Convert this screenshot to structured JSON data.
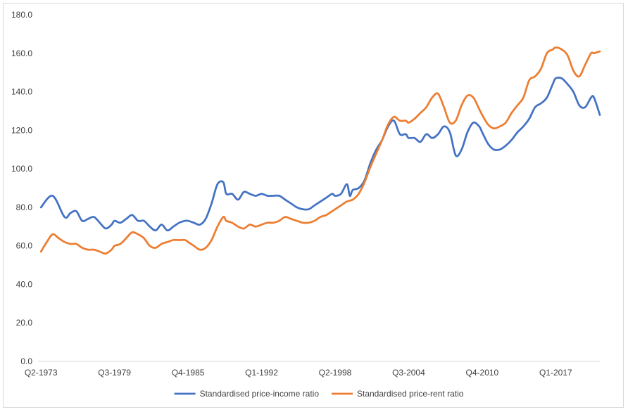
{
  "chart_data": {
    "type": "line",
    "title": "",
    "xlabel": "",
    "ylabel": "",
    "ylim": [
      0,
      180
    ],
    "y_ticks": [
      "0.0",
      "20.0",
      "40.0",
      "60.0",
      "80.0",
      "100.0",
      "120.0",
      "140.0",
      "160.0",
      "180.0"
    ],
    "x_ticks": [
      "Q2-1973",
      "Q3-1979",
      "Q4-1985",
      "Q1-1992",
      "Q2-1998",
      "Q3-2004",
      "Q4-2010",
      "Q1-2017"
    ],
    "grid": false,
    "legend_position": "bottom",
    "series": [
      {
        "name": "Standardised price-income ratio",
        "color": "#4472C4",
        "points": [
          [
            "Q2-1973",
            80
          ],
          [
            "Q2-1974",
            86
          ],
          [
            "Q2-1975",
            75
          ],
          [
            "Q4-1975",
            77
          ],
          [
            "Q2-1976",
            78
          ],
          [
            "Q4-1976",
            73
          ],
          [
            "Q2-1977",
            74
          ],
          [
            "Q4-1977",
            75
          ],
          [
            "Q2-1978",
            72
          ],
          [
            "Q4-1978",
            69
          ],
          [
            "Q2-1979",
            71
          ],
          [
            "Q3-1979",
            73
          ],
          [
            "Q1-1980",
            72
          ],
          [
            "Q3-1980",
            74
          ],
          [
            "Q1-1981",
            76
          ],
          [
            "Q3-1981",
            73
          ],
          [
            "Q1-1982",
            73
          ],
          [
            "Q3-1982",
            70
          ],
          [
            "Q1-1983",
            68
          ],
          [
            "Q3-1983",
            71
          ],
          [
            "Q1-1984",
            68
          ],
          [
            "Q3-1984",
            70
          ],
          [
            "Q1-1985",
            72
          ],
          [
            "Q3-1985",
            73
          ],
          [
            "Q4-1985",
            73
          ],
          [
            "Q2-1986",
            72
          ],
          [
            "Q4-1986",
            71
          ],
          [
            "Q2-1987",
            74
          ],
          [
            "Q4-1987",
            82
          ],
          [
            "Q2-1988",
            92
          ],
          [
            "Q4-1988",
            93
          ],
          [
            "Q1-1989",
            87
          ],
          [
            "Q3-1989",
            87
          ],
          [
            "Q1-1990",
            84
          ],
          [
            "Q3-1990",
            88
          ],
          [
            "Q1-1991",
            87
          ],
          [
            "Q3-1991",
            86
          ],
          [
            "Q1-1992",
            87
          ],
          [
            "Q3-1992",
            86
          ],
          [
            "Q1-1993",
            86
          ],
          [
            "Q3-1993",
            86
          ],
          [
            "Q1-1994",
            84
          ],
          [
            "Q3-1994",
            82
          ],
          [
            "Q1-1995",
            80
          ],
          [
            "Q3-1995",
            79
          ],
          [
            "Q1-1996",
            79
          ],
          [
            "Q3-1996",
            81
          ],
          [
            "Q1-1997",
            83
          ],
          [
            "Q3-1997",
            85
          ],
          [
            "Q1-1998",
            87
          ],
          [
            "Q2-1998",
            86
          ],
          [
            "Q4-1998",
            87
          ],
          [
            "Q2-1999",
            92
          ],
          [
            "Q3-1999",
            86
          ],
          [
            "Q4-1999",
            89
          ],
          [
            "Q2-2000",
            90
          ],
          [
            "Q4-2000",
            94
          ],
          [
            "Q2-2001",
            103
          ],
          [
            "Q4-2001",
            110
          ],
          [
            "Q2-2002",
            115
          ],
          [
            "Q4-2002",
            122
          ],
          [
            "Q2-2003",
            125
          ],
          [
            "Q4-2003",
            118
          ],
          [
            "Q2-2004",
            118
          ],
          [
            "Q3-2004",
            116
          ],
          [
            "Q1-2005",
            116
          ],
          [
            "Q3-2005",
            114
          ],
          [
            "Q1-2006",
            118
          ],
          [
            "Q3-2006",
            116
          ],
          [
            "Q1-2007",
            118
          ],
          [
            "Q3-2007",
            122
          ],
          [
            "Q1-2008",
            119
          ],
          [
            "Q3-2008",
            107
          ],
          [
            "Q1-2009",
            110
          ],
          [
            "Q3-2009",
            119
          ],
          [
            "Q1-2010",
            124
          ],
          [
            "Q3-2010",
            122
          ],
          [
            "Q4-2010",
            119
          ],
          [
            "Q2-2011",
            113
          ],
          [
            "Q4-2011",
            110
          ],
          [
            "Q2-2012",
            110
          ],
          [
            "Q4-2012",
            112
          ],
          [
            "Q2-2013",
            115
          ],
          [
            "Q4-2013",
            119
          ],
          [
            "Q2-2014",
            122
          ],
          [
            "Q4-2014",
            126
          ],
          [
            "Q2-2015",
            132
          ],
          [
            "Q4-2015",
            134
          ],
          [
            "Q2-2016",
            137
          ],
          [
            "Q4-2016",
            144
          ],
          [
            "Q1-2017",
            147
          ],
          [
            "Q3-2017",
            147
          ],
          [
            "Q1-2018",
            144
          ],
          [
            "Q3-2018",
            140
          ],
          [
            "Q1-2019",
            133
          ],
          [
            "Q3-2019",
            132
          ],
          [
            "Q1-2020",
            137
          ],
          [
            "Q2-2020",
            137
          ],
          [
            "Q4-2020",
            128
          ]
        ]
      },
      {
        "name": "Standardised price-rent ratio",
        "color": "#ED7D31",
        "points": [
          [
            "Q2-1973",
            57
          ],
          [
            "Q4-1973",
            62
          ],
          [
            "Q2-1974",
            66
          ],
          [
            "Q4-1974",
            64
          ],
          [
            "Q2-1975",
            62
          ],
          [
            "Q4-1975",
            61
          ],
          [
            "Q2-1976",
            61
          ],
          [
            "Q4-1976",
            59
          ],
          [
            "Q2-1977",
            58
          ],
          [
            "Q4-1977",
            58
          ],
          [
            "Q2-1978",
            57
          ],
          [
            "Q4-1978",
            56
          ],
          [
            "Q2-1979",
            58
          ],
          [
            "Q3-1979",
            60
          ],
          [
            "Q1-1980",
            61
          ],
          [
            "Q3-1980",
            64
          ],
          [
            "Q1-1981",
            67
          ],
          [
            "Q3-1981",
            66
          ],
          [
            "Q1-1982",
            64
          ],
          [
            "Q3-1982",
            60
          ],
          [
            "Q1-1983",
            59
          ],
          [
            "Q3-1983",
            61
          ],
          [
            "Q1-1984",
            62
          ],
          [
            "Q3-1984",
            63
          ],
          [
            "Q1-1985",
            63
          ],
          [
            "Q3-1985",
            63
          ],
          [
            "Q4-1985",
            62
          ],
          [
            "Q2-1986",
            60
          ],
          [
            "Q4-1986",
            58
          ],
          [
            "Q2-1987",
            59
          ],
          [
            "Q4-1987",
            63
          ],
          [
            "Q2-1988",
            70
          ],
          [
            "Q4-1988",
            75
          ],
          [
            "Q1-1989",
            73
          ],
          [
            "Q3-1989",
            72
          ],
          [
            "Q1-1990",
            70
          ],
          [
            "Q3-1990",
            69
          ],
          [
            "Q1-1991",
            71
          ],
          [
            "Q3-1991",
            70
          ],
          [
            "Q1-1992",
            71
          ],
          [
            "Q3-1992",
            72
          ],
          [
            "Q1-1993",
            72
          ],
          [
            "Q3-1993",
            73
          ],
          [
            "Q1-1994",
            75
          ],
          [
            "Q3-1994",
            74
          ],
          [
            "Q1-1995",
            73
          ],
          [
            "Q3-1995",
            72
          ],
          [
            "Q1-1996",
            72
          ],
          [
            "Q3-1996",
            73
          ],
          [
            "Q1-1997",
            75
          ],
          [
            "Q3-1997",
            76
          ],
          [
            "Q1-1998",
            78
          ],
          [
            "Q2-1998",
            79
          ],
          [
            "Q4-1998",
            81
          ],
          [
            "Q2-1999",
            83
          ],
          [
            "Q4-1999",
            84
          ],
          [
            "Q2-2000",
            87
          ],
          [
            "Q4-2000",
            93
          ],
          [
            "Q2-2001",
            101
          ],
          [
            "Q4-2001",
            108
          ],
          [
            "Q2-2002",
            115
          ],
          [
            "Q4-2002",
            123
          ],
          [
            "Q2-2003",
            127
          ],
          [
            "Q4-2003",
            125
          ],
          [
            "Q2-2004",
            125
          ],
          [
            "Q3-2004",
            124
          ],
          [
            "Q1-2005",
            126
          ],
          [
            "Q3-2005",
            129
          ],
          [
            "Q1-2006",
            132
          ],
          [
            "Q3-2006",
            137
          ],
          [
            "Q1-2007",
            139
          ],
          [
            "Q3-2007",
            132
          ],
          [
            "Q1-2008",
            124
          ],
          [
            "Q3-2008",
            125
          ],
          [
            "Q1-2009",
            133
          ],
          [
            "Q3-2009",
            138
          ],
          [
            "Q1-2010",
            137
          ],
          [
            "Q3-2010",
            131
          ],
          [
            "Q4-2010",
            128
          ],
          [
            "Q2-2011",
            123
          ],
          [
            "Q4-2011",
            121
          ],
          [
            "Q2-2012",
            122
          ],
          [
            "Q4-2012",
            124
          ],
          [
            "Q2-2013",
            129
          ],
          [
            "Q4-2013",
            133
          ],
          [
            "Q2-2014",
            137
          ],
          [
            "Q4-2014",
            146
          ],
          [
            "Q2-2015",
            148
          ],
          [
            "Q4-2015",
            152
          ],
          [
            "Q2-2016",
            160
          ],
          [
            "Q4-2016",
            162
          ],
          [
            "Q1-2017",
            163
          ],
          [
            "Q3-2017",
            162
          ],
          [
            "Q1-2018",
            159
          ],
          [
            "Q3-2018",
            151
          ],
          [
            "Q1-2019",
            148
          ],
          [
            "Q3-2019",
            154
          ],
          [
            "Q1-2020",
            160
          ],
          [
            "Q2-2020",
            160
          ],
          [
            "Q4-2020",
            161
          ]
        ]
      }
    ]
  }
}
